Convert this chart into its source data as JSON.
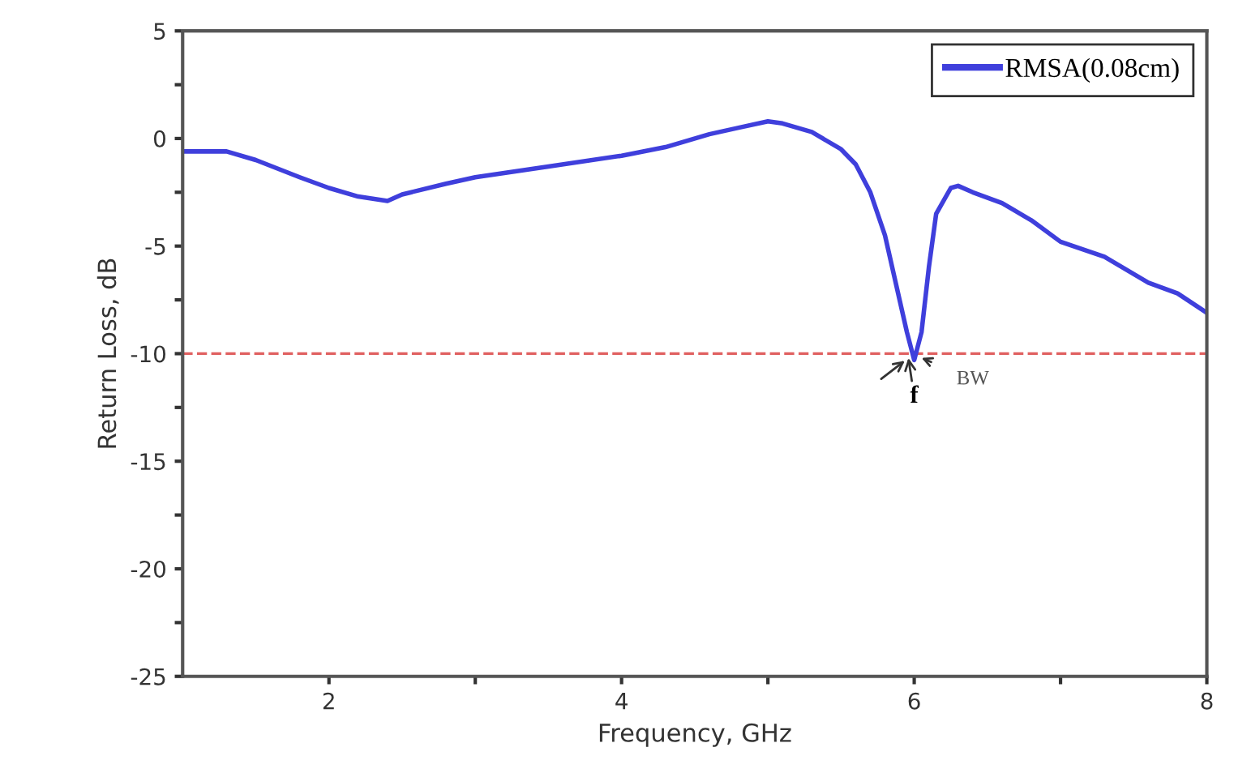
{
  "chart_data": {
    "type": "line",
    "xlabel": "Frequency, GHz",
    "ylabel": "Return Loss, dB",
    "x": [
      1.0,
      1.3,
      1.5,
      1.8,
      2.0,
      2.2,
      2.4,
      2.5,
      2.8,
      3.0,
      3.5,
      4.0,
      4.3,
      4.6,
      4.8,
      5.0,
      5.1,
      5.3,
      5.5,
      5.6,
      5.7,
      5.8,
      5.9,
      5.95,
      6.0,
      6.05,
      6.1,
      6.15,
      6.25,
      6.3,
      6.4,
      6.6,
      6.8,
      7.0,
      7.3,
      7.6,
      7.8,
      8.0
    ],
    "series": [
      {
        "name": "RMSA(0.08cm)",
        "color": "#3f3fdc",
        "values": [
          -0.6,
          -0.6,
          -1.0,
          -1.8,
          -2.3,
          -2.7,
          -2.9,
          -2.6,
          -2.1,
          -1.8,
          -1.3,
          -0.8,
          -0.4,
          0.2,
          0.5,
          0.8,
          0.7,
          0.3,
          -0.5,
          -1.2,
          -2.5,
          -4.5,
          -7.5,
          -9.0,
          -10.3,
          -9.0,
          -6.0,
          -3.5,
          -2.3,
          -2.2,
          -2.5,
          -3.0,
          -3.8,
          -4.8,
          -5.5,
          -6.7,
          -7.2,
          -8.1
        ]
      }
    ],
    "xlim": [
      1,
      8
    ],
    "ylim": [
      -25,
      5
    ],
    "xticks": [
      2,
      {
        "value": 3,
        "label": null
      },
      4,
      {
        "value": 5,
        "label": null
      },
      6,
      {
        "value": 7,
        "label": null
      },
      8
    ],
    "yticks": [
      -25,
      {
        "value": -22.5,
        "label": null
      },
      -20,
      {
        "value": -17.5,
        "label": null
      },
      -15,
      {
        "value": -12.5,
        "label": null
      },
      -10,
      {
        "value": -7.5,
        "label": null
      },
      -5,
      {
        "value": -2.5,
        "label": null
      },
      0,
      {
        "value": 2.5,
        "label": null
      },
      5
    ],
    "ref_lines": [
      {
        "axis": "y",
        "value": -10,
        "color": "#e06060",
        "line_style": "dashed"
      }
    ],
    "annotations": [
      {
        "text": "f",
        "x": 6.0,
        "y": -10.3
      },
      {
        "text": "BW",
        "x": 6.05,
        "y": -10.3
      }
    ],
    "legend": "top right",
    "grid": false,
    "marker": "none",
    "line_style": "solid"
  }
}
